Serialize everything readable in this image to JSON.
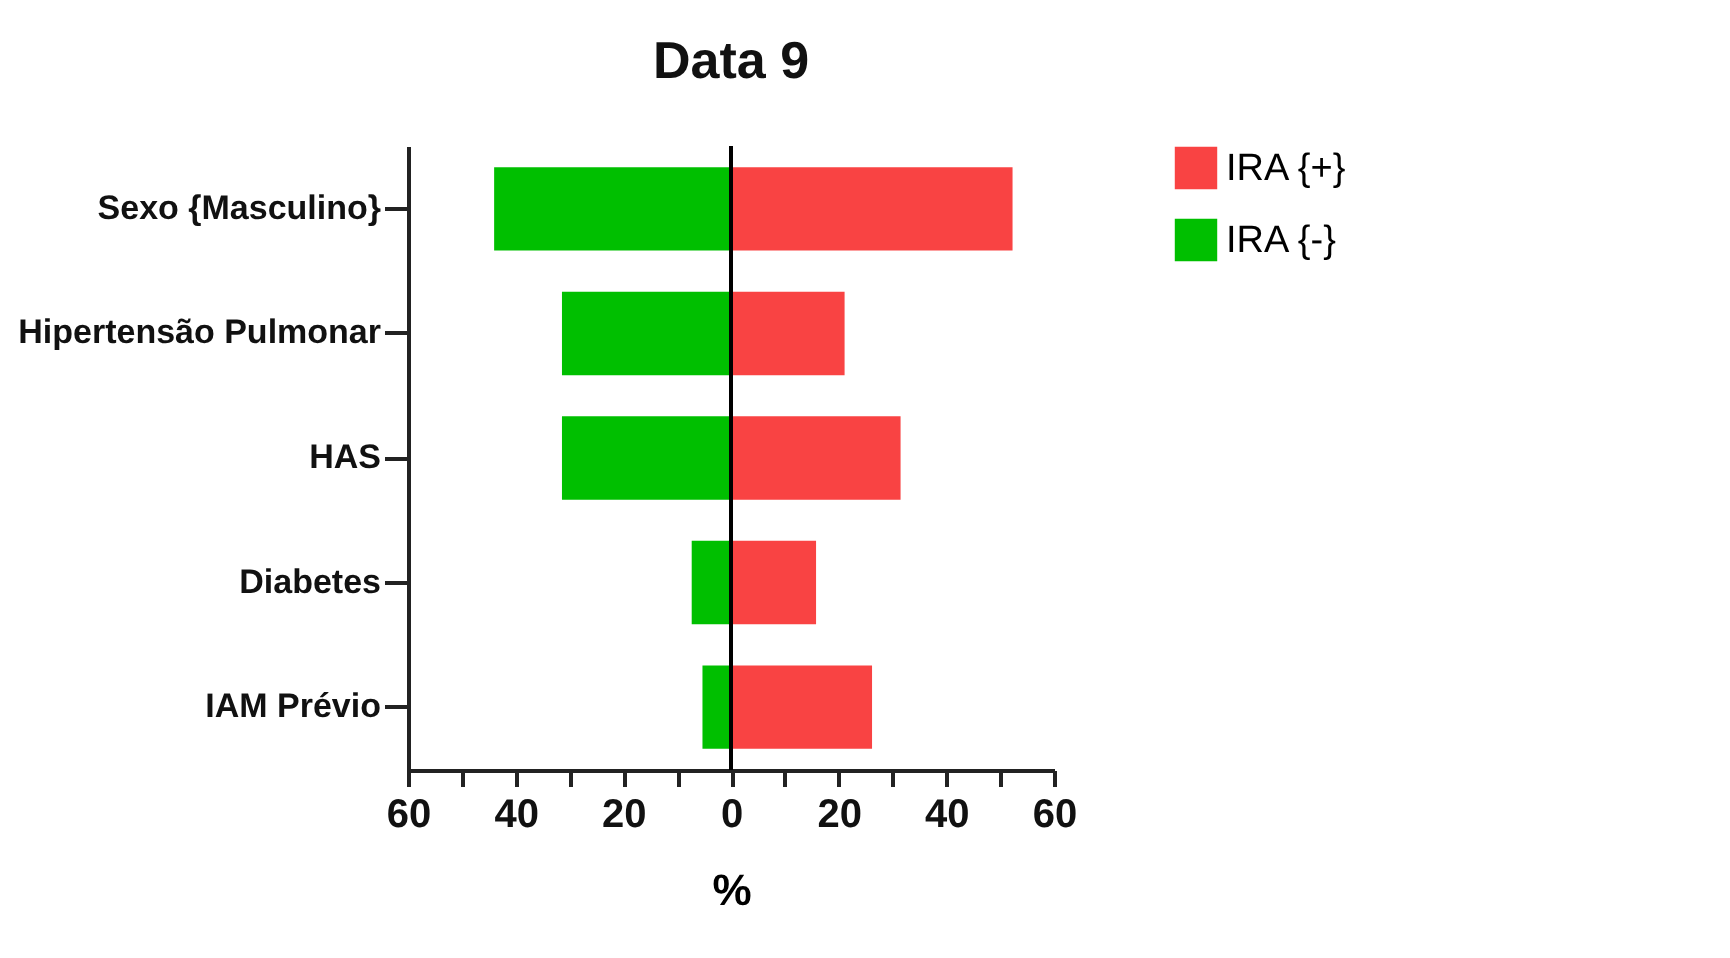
{
  "chart_data": {
    "type": "bar",
    "title": "Data 9",
    "xlabel": "%",
    "orientation": "horizontal",
    "stacked": true,
    "categories": [
      "Sexo {Masculino}",
      "Hipertensão Pulmonar",
      "HAS",
      "Diabetes",
      "IAM Prévio"
    ],
    "series": [
      {
        "name": "IRA {+}",
        "color": "#f94343",
        "values": [
          52.3,
          21.1,
          31.5,
          15.8,
          26.2
        ]
      },
      {
        "name": "IRA {-}",
        "color": "#00bf00",
        "values": [
          -44,
          -31.4,
          -31.4,
          -7.3,
          -5.3
        ]
      }
    ],
    "xlim": [
      -60,
      60
    ],
    "xticks": [
      {
        "value": -60,
        "label": "60"
      },
      {
        "value": -50,
        "label": null
      },
      {
        "value": -40,
        "label": "40"
      },
      {
        "value": -30,
        "label": null
      },
      {
        "value": -20,
        "label": "20"
      },
      {
        "value": -10,
        "label": null
      },
      0,
      {
        "value": 10,
        "label": null
      },
      20,
      {
        "value": 30,
        "label": null
      },
      40,
      {
        "value": 50,
        "label": null
      },
      60
    ],
    "ref_lines": [
      {
        "axis": "x",
        "value": 0,
        "color": "#000000"
      }
    ],
    "grid": false,
    "legend": "top right"
  }
}
